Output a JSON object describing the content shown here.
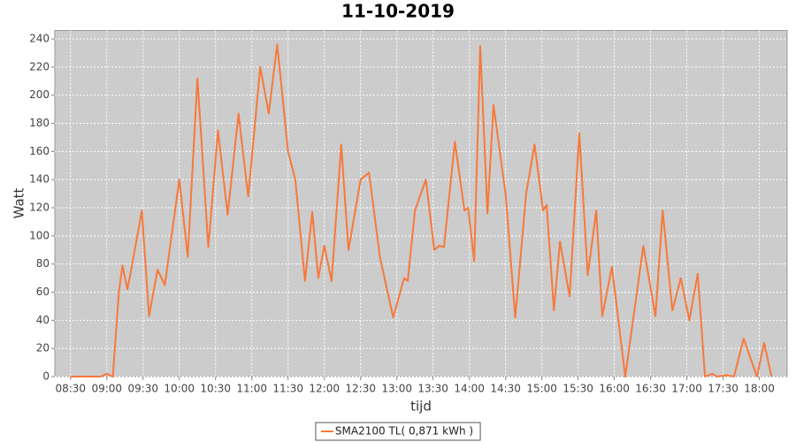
{
  "chart_data": {
    "type": "line",
    "title": "11-10-2019",
    "x_label": "tijd",
    "y_label": "Watt",
    "x": [
      "08:30",
      "08:35",
      "08:40",
      "08:45",
      "08:50",
      "08:55",
      "09:00",
      "09:05",
      "09:10",
      "09:13",
      "09:17",
      "09:20",
      "09:29",
      "09:35",
      "09:42",
      "09:48",
      "10:00",
      "10:07",
      "10:15",
      "10:24",
      "10:32",
      "10:40",
      "10:49",
      "10:57",
      "11:07",
      "11:14",
      "11:21",
      "11:30",
      "11:36",
      "11:44",
      "11:50",
      "11:55",
      "12:00",
      "12:06",
      "12:14",
      "12:20",
      "12:30",
      "12:37",
      "12:46",
      "12:57",
      "13:06",
      "13:09",
      "13:15",
      "13:24",
      "13:31",
      "13:35",
      "13:39",
      "13:48",
      "13:56",
      "13:59",
      "14:04",
      "14:09",
      "14:15",
      "14:20",
      "14:26",
      "14:30",
      "14:38",
      "14:47",
      "14:54",
      "15:01",
      "15:04",
      "15:10",
      "15:15",
      "15:23",
      "15:31",
      "15:38",
      "15:45",
      "15:50",
      "15:58",
      "16:09",
      "16:24",
      "16:34",
      "16:40",
      "16:48",
      "16:55",
      "17:02",
      "17:09",
      "17:15",
      "17:21",
      "17:25",
      "17:33",
      "17:39",
      "17:47",
      "17:58",
      "18:04",
      "18:10"
    ],
    "series": [
      {
        "name": "SMA2100 TL( 0,871 kWh )",
        "color": "#f7793b",
        "values": [
          0,
          0,
          0,
          0,
          0,
          0,
          2,
          0,
          60,
          79,
          62,
          75,
          118,
          43,
          76,
          65,
          140,
          85,
          212,
          92,
          175,
          115,
          187,
          128,
          220,
          187,
          236,
          160,
          140,
          68,
          117,
          70,
          93,
          68,
          165,
          90,
          140,
          145,
          85,
          42,
          70,
          68,
          118,
          140,
          90,
          93,
          92,
          167,
          118,
          120,
          82,
          235,
          116,
          193,
          155,
          130,
          42,
          130,
          165,
          118,
          122,
          47,
          96,
          57,
          173,
          72,
          118,
          43,
          78,
          0,
          93,
          43,
          118,
          47,
          70,
          40,
          73,
          0,
          2,
          0,
          1,
          0,
          27,
          0,
          24,
          0
        ]
      }
    ],
    "xlim": [
      "08:17",
      "18:23"
    ],
    "xticks": [
      "08:30",
      "09:00",
      "09:30",
      "10:00",
      "10:30",
      "11:00",
      "11:30",
      "12:00",
      "12:30",
      "13:00",
      "13:30",
      "14:00",
      "14:30",
      "15:00",
      "15:30",
      "16:00",
      "16:30",
      "17:00",
      "17:30",
      "18:00"
    ],
    "ylim": [
      0,
      246
    ],
    "yticks": [
      0,
      20,
      40,
      60,
      80,
      100,
      120,
      140,
      160,
      180,
      200,
      220,
      240
    ],
    "grid": true,
    "legend": "bottom"
  }
}
